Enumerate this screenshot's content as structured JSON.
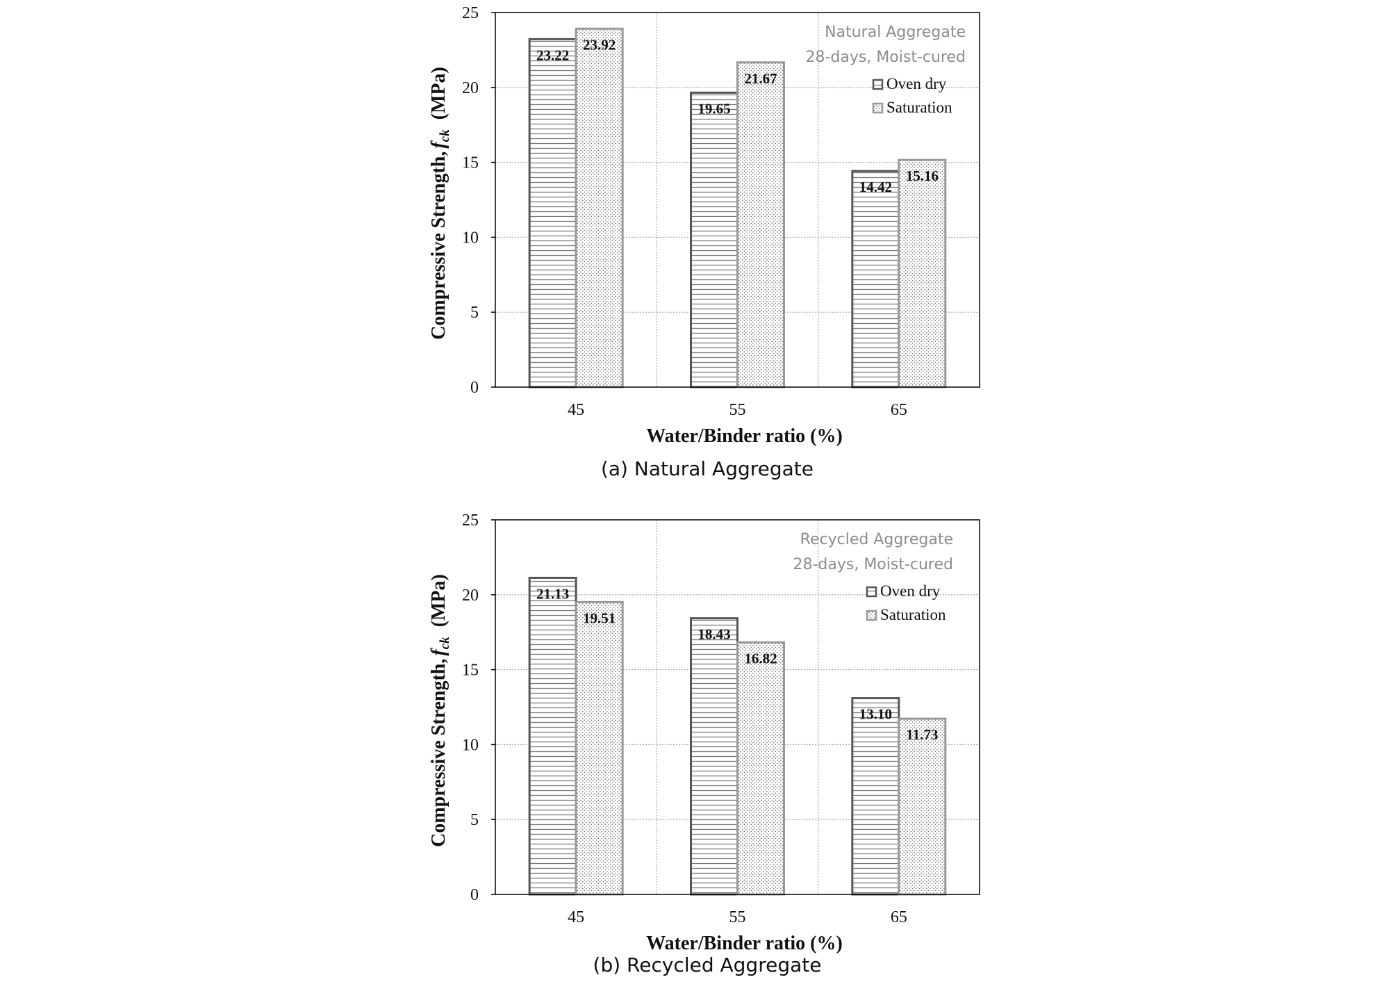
{
  "chart_data": [
    {
      "type": "bar",
      "caption": "(a) Natural Aggregate",
      "categories": [
        "45",
        "55",
        "65"
      ],
      "series": [
        {
          "name": "Oven dry",
          "values": [
            23.22,
            19.65,
            14.42
          ],
          "pattern": "horizontal-lines",
          "stroke": "#555555"
        },
        {
          "name": "Saturation",
          "values": [
            23.92,
            21.67,
            15.16
          ],
          "pattern": "dots",
          "stroke": "#999999"
        }
      ],
      "data_labels": [
        [
          "23.22",
          "19.65",
          "14.42"
        ],
        [
          "23.92",
          "21.67",
          "15.16"
        ]
      ],
      "xlabel": "Water/Binder ratio  (%)",
      "ylabel": "Compressive Strength, f_ck  (MPa)",
      "ylabel_parts": {
        "main": "Compressive Strength,",
        "var": "f",
        "sub": "ck",
        "unit": "(MPa)"
      },
      "ylim": [
        0,
        25
      ],
      "yticks": [
        "0",
        "5",
        "10",
        "15",
        "20",
        "25"
      ],
      "grid": true,
      "annotation": [
        "Natural Aggregate",
        "28-days, Moist-cured"
      ],
      "legend_position": "top-right"
    },
    {
      "type": "bar",
      "caption": "(b) Recycled Aggregate",
      "categories": [
        "45",
        "55",
        "65"
      ],
      "series": [
        {
          "name": "Oven dry",
          "values": [
            21.13,
            18.43,
            13.1
          ],
          "pattern": "horizontal-lines",
          "stroke": "#555555"
        },
        {
          "name": "Saturation",
          "values": [
            19.51,
            16.82,
            11.73
          ],
          "pattern": "dots",
          "stroke": "#999999"
        }
      ],
      "data_labels": [
        [
          "21.13",
          "18.43",
          "13.10"
        ],
        [
          "19.51",
          "16.82",
          "11.73"
        ]
      ],
      "xlabel": "Water/Binder ratio  (%)",
      "ylabel": "Compressive Strength, f_ck  (MPa)",
      "ylabel_parts": {
        "main": "Compressive Strength,",
        "var": "f",
        "sub": "ck",
        "unit": "(MPa)"
      },
      "ylim": [
        0,
        25
      ],
      "yticks": [
        "0",
        "5",
        "10",
        "15",
        "20",
        "25"
      ],
      "grid": true,
      "annotation": [
        "Recycled Aggregate",
        "28-days, Moist-cured"
      ],
      "legend_position": "top-right"
    }
  ]
}
